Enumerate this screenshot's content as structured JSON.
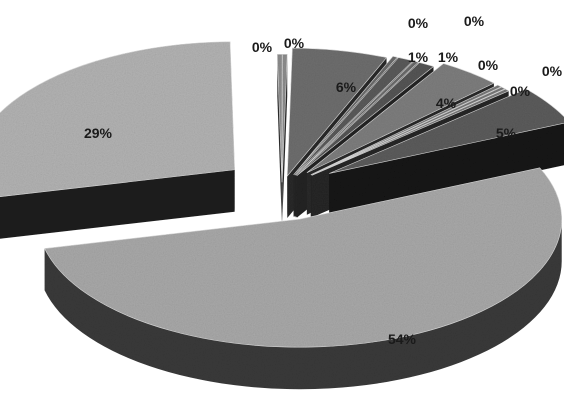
{
  "chart_data": {
    "type": "pie",
    "variant": "3d-exploded",
    "title": "",
    "legend": "none",
    "slices": [
      {
        "label": "0%",
        "value": 0.3,
        "top_color": "#8d8d8d",
        "side_color": "#2b2b2b"
      },
      {
        "label": "0%",
        "value": 0.3,
        "top_color": "#8d8d8d",
        "side_color": "#2b2b2b"
      },
      {
        "label": "6%",
        "value": 6,
        "top_color": "#6e6e6e",
        "side_color": "#2a2a2a"
      },
      {
        "label": "0%",
        "value": 0.3,
        "top_color": "#6a6a6a",
        "side_color": "#262626"
      },
      {
        "label": "1%",
        "value": 1,
        "top_color": "#5a5a5a",
        "side_color": "#232323"
      },
      {
        "label": "0%",
        "value": 0.3,
        "top_color": "#6a6a6a",
        "side_color": "#262626"
      },
      {
        "label": "1%",
        "value": 1,
        "top_color": "#555555",
        "side_color": "#222222"
      },
      {
        "label": "4%",
        "value": 4,
        "top_color": "#7e7e7e",
        "side_color": "#2a2a2a"
      },
      {
        "label": "0%",
        "value": 0.3,
        "top_color": "#777777",
        "side_color": "#262626"
      },
      {
        "label": "0%",
        "value": 0.3,
        "top_color": "#777777",
        "side_color": "#262626"
      },
      {
        "label": "0%",
        "value": 0.3,
        "top_color": "#777777",
        "side_color": "#262626"
      },
      {
        "label": "5%",
        "value": 5,
        "top_color": "#5c5c5c",
        "side_color": "#141414"
      },
      {
        "label": "54%",
        "value": 54,
        "top_color": "#a9a9a9",
        "side_color": "#3a3a3a"
      },
      {
        "label": "29%",
        "value": 29,
        "top_color": "#b3b3b3",
        "side_color": "#1f1f1f"
      }
    ]
  }
}
